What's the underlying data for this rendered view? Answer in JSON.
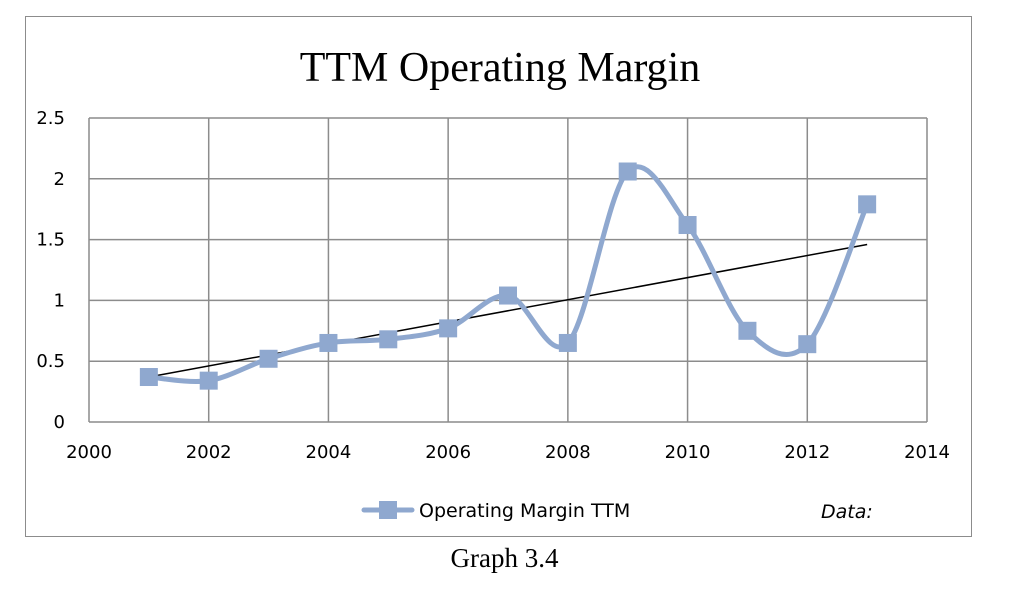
{
  "caption": "Graph 3.4",
  "chart_data": {
    "type": "line",
    "title": "TTM Operating Margin",
    "xlabel": "",
    "ylabel": "",
    "xlim": [
      2000,
      2014
    ],
    "ylim": [
      0,
      2.5
    ],
    "x_ticks": [
      "2000",
      "2002",
      "2004",
      "2006",
      "2008",
      "2010",
      "2012",
      "2014"
    ],
    "y_ticks": [
      "0",
      "0.5",
      "1",
      "1.5",
      "2",
      "2.5"
    ],
    "grid": true,
    "smooth": true,
    "series": [
      {
        "name": "Operating Margin TTM",
        "color": "#8fa8cf",
        "marker": "square",
        "x": [
          2001,
          2002,
          2003,
          2004,
          2005,
          2006,
          2007,
          2008,
          2009,
          2010,
          2011,
          2012,
          2013
        ],
        "values": [
          0.37,
          0.34,
          0.52,
          0.65,
          0.68,
          0.77,
          1.04,
          0.65,
          2.06,
          1.62,
          0.75,
          0.64,
          1.79
        ]
      }
    ],
    "trendline": {
      "type": "linear",
      "color": "#000000",
      "x": [
        2001,
        2013
      ],
      "values": [
        0.37,
        1.46
      ]
    },
    "legend": {
      "position": "bottom",
      "entries": [
        "Operating Margin TTM"
      ],
      "note": "Data:"
    }
  }
}
